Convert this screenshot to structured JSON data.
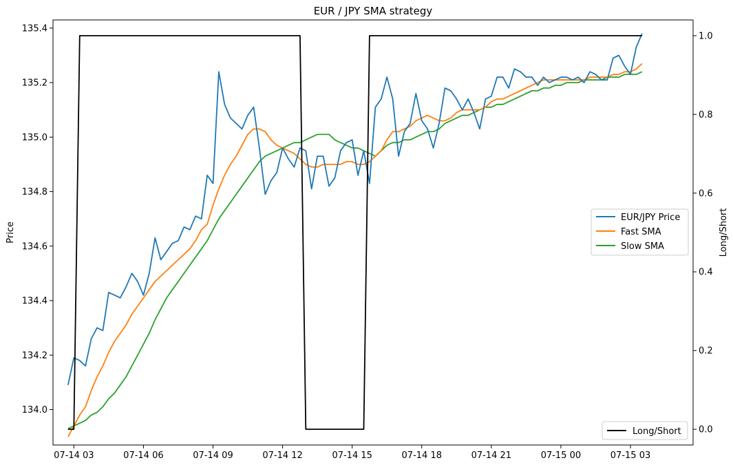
{
  "chart_data": {
    "type": "line",
    "title": "EUR / JPY SMA strategy",
    "ylabel": "Price",
    "y2label": "Long/Short",
    "x_tick_labels": [
      "07-14 03",
      "07-14 06",
      "07-14 09",
      "07-14 12",
      "07-14 15",
      "07-14 18",
      "07-14 21",
      "07-15 00",
      "07-15 03"
    ],
    "y_ticks": [
      134.0,
      134.2,
      134.4,
      134.6,
      134.8,
      135.0,
      135.2,
      135.4
    ],
    "y2_ticks": [
      0.0,
      0.2,
      0.4,
      0.6,
      0.8,
      1.0
    ],
    "ylim": [
      133.87,
      135.43
    ],
    "y2lim": [
      -0.04,
      1.04
    ],
    "xlim_hours": [
      2.1,
      29.7
    ],
    "series_colors": {
      "EUR/JPY Price": "#1f77b4",
      "Fast SMA": "#ff7f0e",
      "Slow SMA": "#2ca02c",
      "Long/Short": "#000000"
    },
    "legend_main": {
      "placement": "center-right",
      "entries": [
        "EUR/JPY Price",
        "Fast SMA",
        "Slow SMA"
      ]
    },
    "legend_secondary": {
      "placement": "lower-right",
      "entries": [
        "Long/Short"
      ]
    },
    "price": [
      [
        2.75,
        134.09
      ],
      [
        3.0,
        134.19
      ],
      [
        3.25,
        134.18
      ],
      [
        3.5,
        134.16
      ],
      [
        3.75,
        134.26
      ],
      [
        4.0,
        134.3
      ],
      [
        4.25,
        134.29
      ],
      [
        4.5,
        134.43
      ],
      [
        4.75,
        134.42
      ],
      [
        5.0,
        134.41
      ],
      [
        5.25,
        134.45
      ],
      [
        5.5,
        134.5
      ],
      [
        5.75,
        134.47
      ],
      [
        6.0,
        134.42
      ],
      [
        6.25,
        134.5
      ],
      [
        6.5,
        134.63
      ],
      [
        6.75,
        134.55
      ],
      [
        7.0,
        134.58
      ],
      [
        7.25,
        134.61
      ],
      [
        7.5,
        134.62
      ],
      [
        7.75,
        134.67
      ],
      [
        8.0,
        134.66
      ],
      [
        8.25,
        134.71
      ],
      [
        8.5,
        134.7
      ],
      [
        8.75,
        134.86
      ],
      [
        9.0,
        134.83
      ],
      [
        9.25,
        135.24
      ],
      [
        9.5,
        135.12
      ],
      [
        9.75,
        135.07
      ],
      [
        10.0,
        135.05
      ],
      [
        10.25,
        135.03
      ],
      [
        10.5,
        135.08
      ],
      [
        10.75,
        135.11
      ],
      [
        11.0,
        134.96
      ],
      [
        11.25,
        134.79
      ],
      [
        11.5,
        134.84
      ],
      [
        11.75,
        134.87
      ],
      [
        12.0,
        134.96
      ],
      [
        12.25,
        134.92
      ],
      [
        12.5,
        134.89
      ],
      [
        12.75,
        134.96
      ],
      [
        13.0,
        134.95
      ],
      [
        13.25,
        134.81
      ],
      [
        13.5,
        134.93
      ],
      [
        13.75,
        134.93
      ],
      [
        14.0,
        134.82
      ],
      [
        14.25,
        134.85
      ],
      [
        14.5,
        134.95
      ],
      [
        14.75,
        134.98
      ],
      [
        15.0,
        134.99
      ],
      [
        15.25,
        134.86
      ],
      [
        15.5,
        134.95
      ],
      [
        15.75,
        134.83
      ],
      [
        16.0,
        135.11
      ],
      [
        16.25,
        135.14
      ],
      [
        16.5,
        135.22
      ],
      [
        16.75,
        135.14
      ],
      [
        17.0,
        134.93
      ],
      [
        17.25,
        135.02
      ],
      [
        17.5,
        135.05
      ],
      [
        17.75,
        135.16
      ],
      [
        18.0,
        135.06
      ],
      [
        18.25,
        135.03
      ],
      [
        18.5,
        134.96
      ],
      [
        18.75,
        135.05
      ],
      [
        19.0,
        135.18
      ],
      [
        19.25,
        135.17
      ],
      [
        19.5,
        135.14
      ],
      [
        19.75,
        135.1
      ],
      [
        20.0,
        135.14
      ],
      [
        20.25,
        135.09
      ],
      [
        20.5,
        135.03
      ],
      [
        20.75,
        135.14
      ],
      [
        21.0,
        135.15
      ],
      [
        21.25,
        135.22
      ],
      [
        21.5,
        135.22
      ],
      [
        21.75,
        135.18
      ],
      [
        22.0,
        135.25
      ],
      [
        22.25,
        135.24
      ],
      [
        22.5,
        135.22
      ],
      [
        22.75,
        135.22
      ],
      [
        23.0,
        135.19
      ],
      [
        23.25,
        135.22
      ],
      [
        23.5,
        135.2
      ],
      [
        23.75,
        135.21
      ],
      [
        24.0,
        135.22
      ],
      [
        24.25,
        135.22
      ],
      [
        24.5,
        135.21
      ],
      [
        24.75,
        135.22
      ],
      [
        25.0,
        135.2
      ],
      [
        25.25,
        135.24
      ],
      [
        25.5,
        135.23
      ],
      [
        25.75,
        135.21
      ],
      [
        26.0,
        135.21
      ],
      [
        26.25,
        135.29
      ],
      [
        26.5,
        135.3
      ],
      [
        26.75,
        135.26
      ],
      [
        27.0,
        135.23
      ],
      [
        27.25,
        135.33
      ],
      [
        27.5,
        135.38
      ]
    ],
    "fast_sma": [
      [
        2.75,
        133.9
      ],
      [
        3.0,
        133.94
      ],
      [
        3.25,
        133.98
      ],
      [
        3.5,
        134.01
      ],
      [
        3.75,
        134.07
      ],
      [
        4.0,
        134.12
      ],
      [
        4.25,
        134.16
      ],
      [
        4.5,
        134.21
      ],
      [
        4.75,
        134.25
      ],
      [
        5.0,
        134.28
      ],
      [
        5.25,
        134.31
      ],
      [
        5.5,
        134.35
      ],
      [
        5.75,
        134.38
      ],
      [
        6.0,
        134.41
      ],
      [
        6.25,
        134.44
      ],
      [
        6.5,
        134.47
      ],
      [
        6.75,
        134.49
      ],
      [
        7.0,
        134.51
      ],
      [
        7.25,
        134.53
      ],
      [
        7.5,
        134.55
      ],
      [
        7.75,
        134.57
      ],
      [
        8.0,
        134.59
      ],
      [
        8.25,
        134.62
      ],
      [
        8.5,
        134.66
      ],
      [
        8.75,
        134.68
      ],
      [
        9.0,
        134.75
      ],
      [
        9.25,
        134.81
      ],
      [
        9.5,
        134.86
      ],
      [
        9.75,
        134.9
      ],
      [
        10.0,
        134.93
      ],
      [
        10.25,
        134.97
      ],
      [
        10.5,
        135.01
      ],
      [
        10.75,
        135.03
      ],
      [
        11.0,
        135.03
      ],
      [
        11.25,
        135.02
      ],
      [
        11.5,
        134.99
      ],
      [
        11.75,
        134.97
      ],
      [
        12.0,
        134.96
      ],
      [
        12.25,
        134.95
      ],
      [
        12.5,
        134.94
      ],
      [
        12.75,
        134.92
      ],
      [
        13.0,
        134.9
      ],
      [
        13.25,
        134.89
      ],
      [
        13.5,
        134.89
      ],
      [
        13.75,
        134.9
      ],
      [
        14.0,
        134.9
      ],
      [
        14.25,
        134.9
      ],
      [
        14.5,
        134.9
      ],
      [
        14.75,
        134.91
      ],
      [
        15.0,
        134.91
      ],
      [
        15.25,
        134.9
      ],
      [
        15.5,
        134.9
      ],
      [
        15.75,
        134.91
      ],
      [
        16.0,
        134.93
      ],
      [
        16.25,
        134.95
      ],
      [
        16.5,
        134.99
      ],
      [
        16.75,
        135.02
      ],
      [
        17.0,
        135.02
      ],
      [
        17.25,
        135.03
      ],
      [
        17.5,
        135.04
      ],
      [
        17.75,
        135.06
      ],
      [
        18.0,
        135.07
      ],
      [
        18.25,
        135.08
      ],
      [
        18.5,
        135.07
      ],
      [
        18.75,
        135.06
      ],
      [
        19.0,
        135.06
      ],
      [
        19.25,
        135.07
      ],
      [
        19.5,
        135.09
      ],
      [
        19.75,
        135.1
      ],
      [
        20.0,
        135.1
      ],
      [
        20.25,
        135.1
      ],
      [
        20.5,
        135.1
      ],
      [
        20.75,
        135.11
      ],
      [
        21.0,
        135.13
      ],
      [
        21.25,
        135.14
      ],
      [
        21.5,
        135.14
      ],
      [
        21.75,
        135.15
      ],
      [
        22.0,
        135.16
      ],
      [
        22.25,
        135.17
      ],
      [
        22.5,
        135.18
      ],
      [
        22.75,
        135.19
      ],
      [
        23.0,
        135.2
      ],
      [
        23.25,
        135.21
      ],
      [
        23.5,
        135.21
      ],
      [
        23.75,
        135.21
      ],
      [
        24.0,
        135.21
      ],
      [
        24.25,
        135.21
      ],
      [
        24.5,
        135.21
      ],
      [
        24.75,
        135.21
      ],
      [
        25.0,
        135.21
      ],
      [
        25.25,
        135.22
      ],
      [
        25.5,
        135.22
      ],
      [
        25.75,
        135.22
      ],
      [
        26.0,
        135.22
      ],
      [
        26.25,
        135.23
      ],
      [
        26.5,
        135.23
      ],
      [
        26.75,
        135.24
      ],
      [
        27.0,
        135.24
      ],
      [
        27.25,
        135.25
      ],
      [
        27.5,
        135.27
      ]
    ],
    "slow_sma": [
      [
        2.75,
        133.93
      ],
      [
        3.0,
        133.94
      ],
      [
        3.25,
        133.95
      ],
      [
        3.5,
        133.96
      ],
      [
        3.75,
        133.98
      ],
      [
        4.0,
        133.99
      ],
      [
        4.25,
        134.01
      ],
      [
        4.5,
        134.04
      ],
      [
        4.75,
        134.06
      ],
      [
        5.0,
        134.09
      ],
      [
        5.25,
        134.12
      ],
      [
        5.5,
        134.16
      ],
      [
        5.75,
        134.2
      ],
      [
        6.0,
        134.24
      ],
      [
        6.25,
        134.28
      ],
      [
        6.5,
        134.33
      ],
      [
        6.75,
        134.37
      ],
      [
        7.0,
        134.41
      ],
      [
        7.25,
        134.44
      ],
      [
        7.5,
        134.47
      ],
      [
        7.75,
        134.5
      ],
      [
        8.0,
        134.53
      ],
      [
        8.25,
        134.56
      ],
      [
        8.5,
        134.59
      ],
      [
        8.75,
        134.62
      ],
      [
        9.0,
        134.66
      ],
      [
        9.25,
        134.7
      ],
      [
        9.5,
        134.73
      ],
      [
        9.75,
        134.76
      ],
      [
        10.0,
        134.79
      ],
      [
        10.25,
        134.82
      ],
      [
        10.5,
        134.85
      ],
      [
        10.75,
        134.88
      ],
      [
        11.0,
        134.91
      ],
      [
        11.25,
        134.93
      ],
      [
        11.5,
        134.94
      ],
      [
        11.75,
        134.95
      ],
      [
        12.0,
        134.96
      ],
      [
        12.25,
        134.97
      ],
      [
        12.5,
        134.98
      ],
      [
        12.75,
        134.98
      ],
      [
        13.0,
        134.99
      ],
      [
        13.25,
        135.0
      ],
      [
        13.5,
        135.01
      ],
      [
        13.75,
        135.01
      ],
      [
        14.0,
        135.01
      ],
      [
        14.25,
        134.99
      ],
      [
        14.5,
        134.98
      ],
      [
        14.75,
        134.97
      ],
      [
        15.0,
        134.96
      ],
      [
        15.25,
        134.96
      ],
      [
        15.5,
        134.95
      ],
      [
        15.75,
        134.94
      ],
      [
        16.0,
        134.93
      ],
      [
        16.25,
        134.95
      ],
      [
        16.5,
        134.97
      ],
      [
        16.75,
        134.98
      ],
      [
        17.0,
        134.98
      ],
      [
        17.25,
        134.99
      ],
      [
        17.5,
        134.99
      ],
      [
        17.75,
        135.0
      ],
      [
        18.0,
        135.01
      ],
      [
        18.25,
        135.02
      ],
      [
        18.5,
        135.02
      ],
      [
        18.75,
        135.03
      ],
      [
        19.0,
        135.05
      ],
      [
        19.25,
        135.06
      ],
      [
        19.5,
        135.07
      ],
      [
        19.75,
        135.08
      ],
      [
        20.0,
        135.08
      ],
      [
        20.25,
        135.09
      ],
      [
        20.5,
        135.1
      ],
      [
        20.75,
        135.11
      ],
      [
        21.0,
        135.11
      ],
      [
        21.25,
        135.12
      ],
      [
        21.5,
        135.12
      ],
      [
        21.75,
        135.13
      ],
      [
        22.0,
        135.14
      ],
      [
        22.25,
        135.15
      ],
      [
        22.5,
        135.16
      ],
      [
        22.75,
        135.17
      ],
      [
        23.0,
        135.17
      ],
      [
        23.25,
        135.18
      ],
      [
        23.5,
        135.18
      ],
      [
        23.75,
        135.19
      ],
      [
        24.0,
        135.19
      ],
      [
        24.25,
        135.2
      ],
      [
        24.5,
        135.2
      ],
      [
        24.75,
        135.2
      ],
      [
        25.0,
        135.21
      ],
      [
        25.25,
        135.21
      ],
      [
        25.5,
        135.21
      ],
      [
        25.75,
        135.21
      ],
      [
        26.0,
        135.22
      ],
      [
        26.25,
        135.22
      ],
      [
        26.5,
        135.22
      ],
      [
        26.75,
        135.23
      ],
      [
        27.0,
        135.23
      ],
      [
        27.25,
        135.23
      ],
      [
        27.5,
        135.24
      ]
    ],
    "long_short": [
      [
        2.75,
        0
      ],
      [
        3.0,
        0
      ],
      [
        3.25,
        1
      ],
      [
        12.75,
        1
      ],
      [
        13.0,
        0
      ],
      [
        15.5,
        0
      ],
      [
        15.75,
        1
      ],
      [
        27.5,
        1
      ]
    ]
  }
}
